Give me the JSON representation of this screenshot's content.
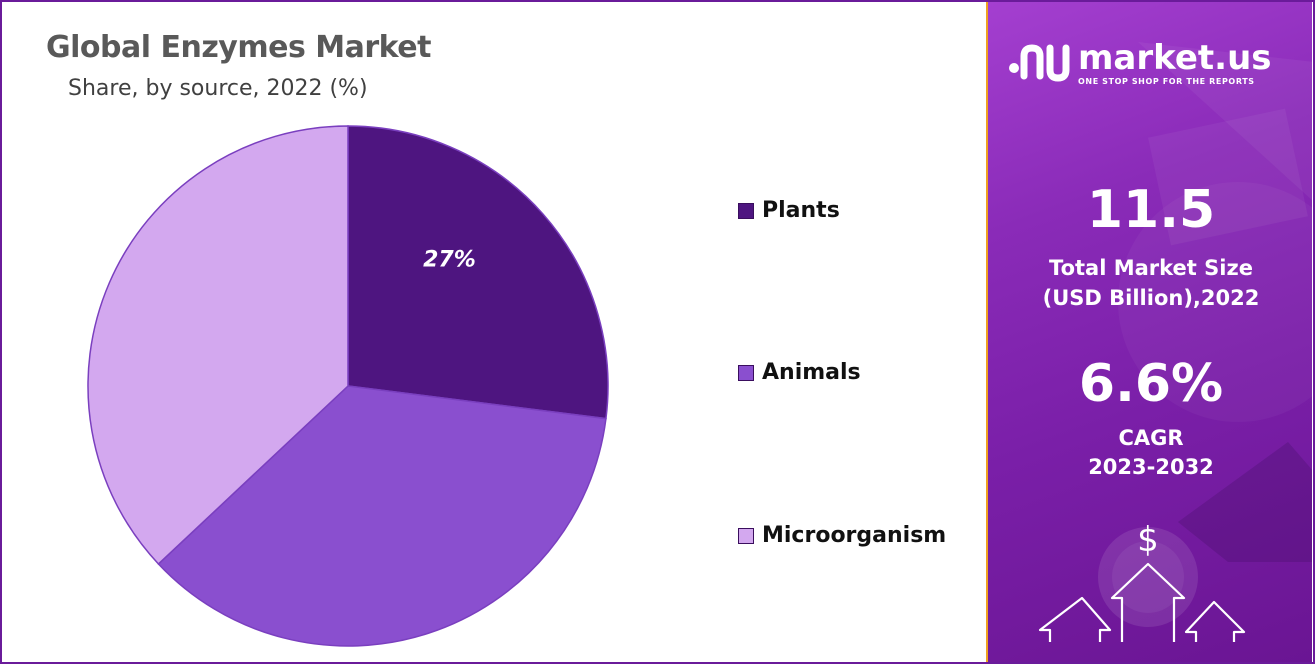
{
  "chart_data": {
    "type": "pie",
    "title": "Global Enzymes  Market",
    "subtitle": "Share, by  source, 2022 (%)",
    "categories": [
      "Plants",
      "Animals",
      "Microorganism"
    ],
    "values": [
      27,
      36,
      37
    ],
    "data_labels": [
      "27%",
      "",
      ""
    ],
    "colors": [
      "#4e1580",
      "#8a4fcf",
      "#d3a8ef"
    ],
    "legend_position": "right"
  },
  "sidebar": {
    "brand_name": "market.us",
    "brand_tagline": "ONE STOP SHOP FOR THE REPORTS",
    "market_size_value": "11.5",
    "market_size_label_line1": "Total Market Size",
    "market_size_label_line2": "(USD Billion),2022",
    "cagr_value": "6.6%",
    "cagr_label_line1": "CAGR",
    "cagr_label_line2": "2023-2032",
    "dollar_symbol": "$",
    "icons": [
      "market-us-logo-icon",
      "dollar-coin-icon",
      "growth-arrow-icon"
    ],
    "colors": {
      "accent_border": "#f0a020",
      "panel": "#8a2bb8"
    }
  }
}
